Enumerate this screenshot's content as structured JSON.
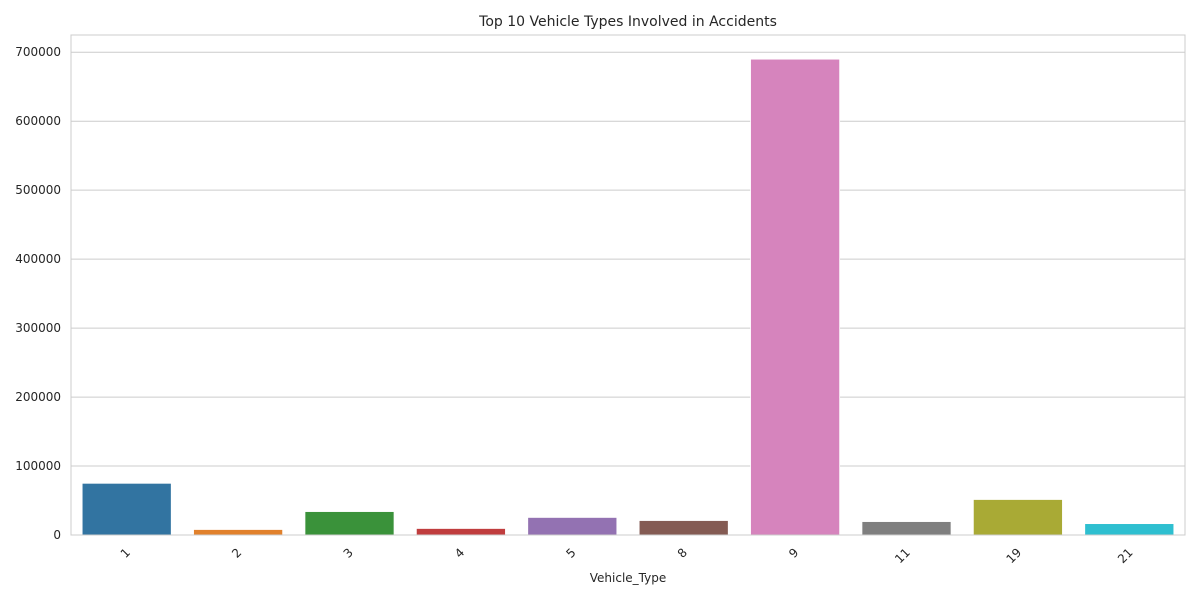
{
  "chart_data": {
    "type": "bar",
    "title": "Top 10 Vehicle Types Involved in Accidents",
    "xlabel": "Vehicle_Type",
    "ylabel": "",
    "categories": [
      "1",
      "2",
      "3",
      "4",
      "5",
      "8",
      "9",
      "11",
      "19",
      "21"
    ],
    "values": [
      75000,
      8000,
      34000,
      9500,
      25500,
      21000,
      690000,
      19500,
      51500,
      16500
    ],
    "colors": [
      "#3274a1",
      "#e1812c",
      "#3a923a",
      "#c03d3e",
      "#9372b2",
      "#845b53",
      "#d684bd",
      "#7f7f7f",
      "#a9aa35",
      "#2ebfd0"
    ],
    "ylim": [
      0,
      725000
    ],
    "yticks": [
      0,
      100000,
      200000,
      300000,
      400000,
      500000,
      600000,
      700000
    ],
    "grid": true,
    "xtick_rotation": 45
  }
}
